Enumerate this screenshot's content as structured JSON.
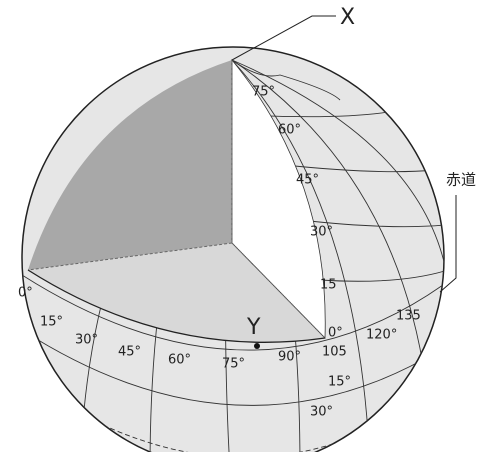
{
  "labels": {
    "x": "X",
    "y": "Y",
    "equator": "赤道"
  },
  "latitudes": [
    "75°",
    "60°",
    "45°",
    "30°",
    "15",
    "0°"
  ],
  "longitudes": [
    "0°",
    "15°",
    "30°",
    "45°",
    "60°",
    "75°",
    "90°",
    "105",
    "120°",
    "135"
  ],
  "southern_latitudes": [
    "15°",
    "30°"
  ]
}
